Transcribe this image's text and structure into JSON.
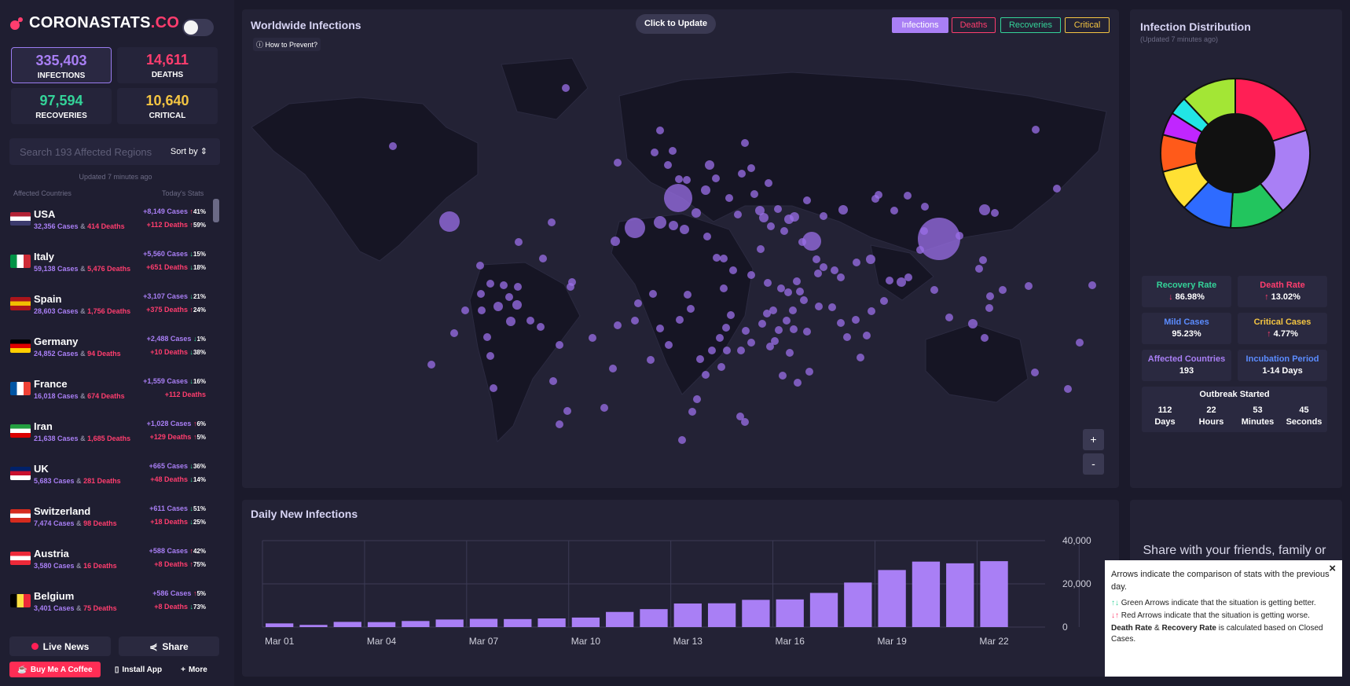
{
  "brand": {
    "name": "CORONASTATS",
    "suffix": ".CO",
    "accent": "#ff3d6e"
  },
  "totals": {
    "infections": {
      "value": "335,403",
      "label": "INFECTIONS",
      "color": "#a97ff5"
    },
    "deaths": {
      "value": "14,611",
      "label": "DEATHS",
      "color": "#ff3d6e"
    },
    "recoveries": {
      "value": "97,594",
      "label": "RECOVERIES",
      "color": "#34d399"
    },
    "critical": {
      "value": "10,640",
      "label": "CRITICAL",
      "color": "#f4c542"
    }
  },
  "search": {
    "placeholder": "Search 193 Affected Regions",
    "sort_label": "Sort by"
  },
  "updated": "Updated 7 minutes ago",
  "list_headers": {
    "left": "Affected Countries",
    "right": "Today's Stats"
  },
  "countries": [
    {
      "name": "USA",
      "cases": "32,356 Cases",
      "deaths": "414 Deaths",
      "today_cases": "+8,149 Cases",
      "tc_dir": "up",
      "tc_pct": "41%",
      "today_deaths": "+112 Deaths",
      "td_dir": "up",
      "td_pct": "59%",
      "flag": "us"
    },
    {
      "name": "Italy",
      "cases": "59,138 Cases",
      "deaths": "5,476 Deaths",
      "today_cases": "+5,560 Cases",
      "tc_dir": "down",
      "tc_pct": "15%",
      "today_deaths": "+651 Deaths",
      "td_dir": "down",
      "td_pct": "18%",
      "flag": "it"
    },
    {
      "name": "Spain",
      "cases": "28,603 Cases",
      "deaths": "1,756 Deaths",
      "today_cases": "+3,107 Cases",
      "tc_dir": "down",
      "tc_pct": "21%",
      "today_deaths": "+375 Deaths",
      "td_dir": "up",
      "td_pct": "24%",
      "flag": "es"
    },
    {
      "name": "Germany",
      "cases": "24,852 Cases",
      "deaths": "94 Deaths",
      "today_cases": "+2,488 Cases",
      "tc_dir": "down",
      "tc_pct": "1%",
      "today_deaths": "+10 Deaths",
      "td_dir": "down",
      "td_pct": "38%",
      "flag": "de"
    },
    {
      "name": "France",
      "cases": "16,018 Cases",
      "deaths": "674 Deaths",
      "today_cases": "+1,559 Cases",
      "tc_dir": "down",
      "tc_pct": "16%",
      "today_deaths": "+112 Deaths",
      "td_dir": "",
      "td_pct": "",
      "flag": "fr"
    },
    {
      "name": "Iran",
      "cases": "21,638 Cases",
      "deaths": "1,685 Deaths",
      "today_cases": "+1,028 Cases",
      "tc_dir": "up",
      "tc_pct": "6%",
      "today_deaths": "+129 Deaths",
      "td_dir": "up",
      "td_pct": "5%",
      "flag": "ir"
    },
    {
      "name": "UK",
      "cases": "5,683 Cases",
      "deaths": "281 Deaths",
      "today_cases": "+665 Cases",
      "tc_dir": "down",
      "tc_pct": "36%",
      "today_deaths": "+48 Deaths",
      "td_dir": "down",
      "td_pct": "14%",
      "flag": "uk"
    },
    {
      "name": "Switzerland",
      "cases": "7,474 Cases",
      "deaths": "98 Deaths",
      "today_cases": "+611 Cases",
      "tc_dir": "down",
      "tc_pct": "51%",
      "today_deaths": "+18 Deaths",
      "td_dir": "down",
      "td_pct": "25%",
      "flag": "ch"
    },
    {
      "name": "Austria",
      "cases": "3,580 Cases",
      "deaths": "16 Deaths",
      "today_cases": "+588 Cases",
      "tc_dir": "up",
      "tc_pct": "42%",
      "today_deaths": "+8 Deaths",
      "td_dir": "up",
      "td_pct": "75%",
      "flag": "at"
    },
    {
      "name": "Belgium",
      "cases": "3,401 Cases",
      "deaths": "75 Deaths",
      "today_cases": "+586 Cases",
      "tc_dir": "up",
      "tc_pct": "5%",
      "today_deaths": "+8 Deaths",
      "td_dir": "down",
      "td_pct": "73%",
      "flag": "be"
    }
  ],
  "footer": {
    "live_news": "Live News",
    "share": "Share",
    "coffee": "Buy Me A Coffee",
    "install": "Install App",
    "more": "More"
  },
  "map": {
    "title": "Worldwide Infections",
    "update_btn": "Click to Update",
    "prevent": "How to Prevent?",
    "tabs": [
      {
        "label": "Infections",
        "color": "#a97ff5"
      },
      {
        "label": "Deaths",
        "color": "#ff3d6e"
      },
      {
        "label": "Recoveries",
        "color": "#34d399"
      },
      {
        "label": "Critical",
        "color": "#f4c542"
      }
    ],
    "zoom_in": "+",
    "zoom_out": "-"
  },
  "distribution": {
    "title": "Infection Distribution",
    "updated": "(Updated 7 minutes ago)",
    "tiles": [
      {
        "label": "Recovery Rate",
        "value": "86.98%",
        "dir": "down",
        "color": "#34d399"
      },
      {
        "label": "Death Rate",
        "value": "13.02%",
        "dir": "up",
        "color": "#ff3d6e"
      },
      {
        "label": "Mild Cases",
        "value": "95.23%",
        "dir": "",
        "color": "#5b8cff"
      },
      {
        "label": "Critical Cases",
        "value": "4.77%",
        "dir": "up",
        "color": "#f4c542"
      },
      {
        "label": "Affected Countries",
        "value": "193",
        "dir": "",
        "color": "#a97ff5"
      },
      {
        "label": "Incubation Period",
        "value": "1-14 Days",
        "dir": "",
        "color": "#5b8cff"
      }
    ],
    "outbreak": {
      "title": "Outbreak Started",
      "days": "112",
      "days_l": "Days",
      "hours": "22",
      "hours_l": "Hours",
      "minutes": "53",
      "minutes_l": "Minutes",
      "seconds": "45",
      "seconds_l": "Seconds"
    }
  },
  "share_text": "Share with your friends, family or",
  "tooltip": {
    "line1": "Arrows indicate the comparison of stats with the previous day.",
    "green": "Green Arrows indicate that the situation is getting better.",
    "red": "Red Arrows indicate that the situation is getting worse.",
    "bold1": "Death Rate",
    "amp": " & ",
    "bold2": "Recovery Rate",
    "rest": " is calculated based on Closed Cases.",
    "close": "×"
  },
  "chart_data": {
    "type": "bar",
    "title": "Daily New Infections",
    "x_tick_labels": [
      "Mar 01",
      "Mar 04",
      "Mar 07",
      "Mar 10",
      "Mar 13",
      "Mar 16",
      "Mar 19",
      "Mar 22"
    ],
    "y_tick_labels": [
      "40,000",
      "20,000",
      "0"
    ],
    "categories": [
      "Mar 01",
      "Mar 02",
      "Mar 03",
      "Mar 04",
      "Mar 05",
      "Mar 06",
      "Mar 07",
      "Mar 08",
      "Mar 09",
      "Mar 10",
      "Mar 11",
      "Mar 12",
      "Mar 13",
      "Mar 14",
      "Mar 15",
      "Mar 16",
      "Mar 17",
      "Mar 18",
      "Mar 19",
      "Mar 20",
      "Mar 21",
      "Mar 22",
      "Mar 23"
    ],
    "values": [
      1700,
      1000,
      2400,
      2300,
      2800,
      3500,
      3800,
      3700,
      4000,
      4400,
      7000,
      8300,
      10900,
      11000,
      12600,
      12800,
      15800,
      20600,
      26400,
      30300,
      29500,
      30500,
      0
    ],
    "ylim": [
      0,
      40000
    ],
    "grid": true,
    "bar_color": "#a97ff5"
  },
  "donut": {
    "slices": [
      {
        "value": 86.98,
        "color": "#a3e635"
      },
      {
        "value": 13.02,
        "color": "#ff1f55"
      }
    ]
  }
}
